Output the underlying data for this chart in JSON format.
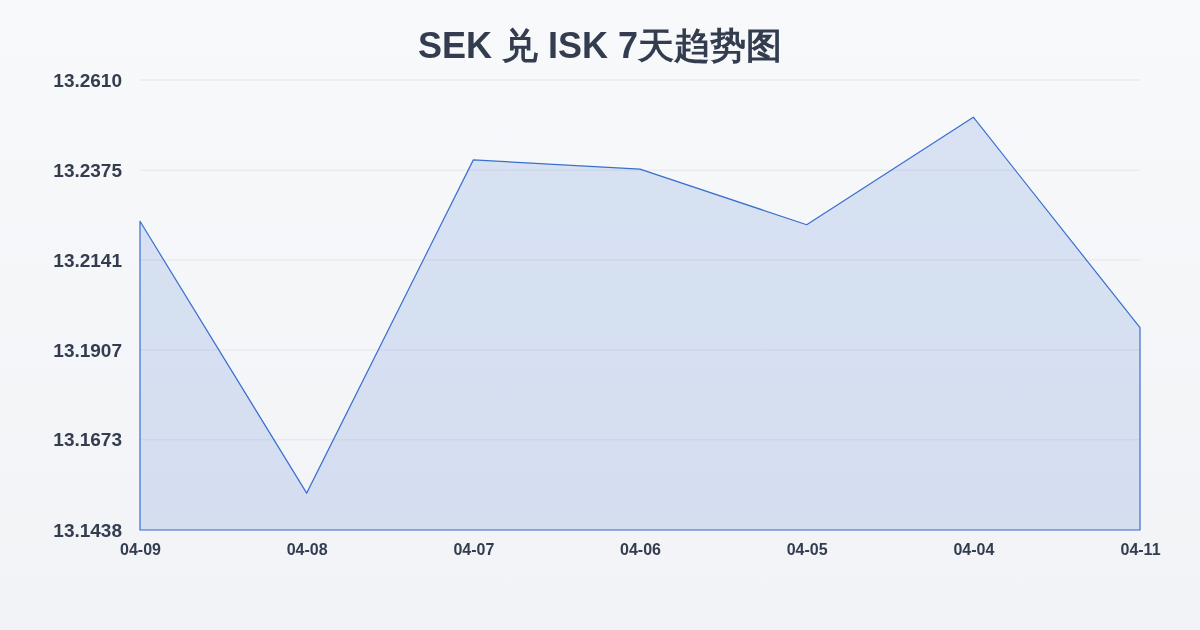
{
  "chart_data": {
    "type": "area",
    "title": "SEK 兑 ISK 7天趋势图",
    "categories": [
      "04-09",
      "04-08",
      "04-07",
      "04-06",
      "04-05",
      "04-04",
      "04-11"
    ],
    "series": [
      {
        "color": "#3a6fd0",
        "values": [
          13.2242,
          13.1534,
          13.2402,
          13.2378,
          13.2233,
          13.2513,
          13.1965
        ]
      }
    ],
    "ylim": [
      13.1438,
      13.261
    ],
    "yticks": [
      {
        "value": 13.1438,
        "label": "13.1438"
      },
      {
        "value": 13.1673,
        "label": "13.1673"
      },
      {
        "value": 13.1907,
        "label": "13.1907"
      },
      {
        "value": 13.2141,
        "label": "13.2141"
      },
      {
        "value": 13.2375,
        "label": "13.2375"
      },
      {
        "value": 13.261,
        "label": "13.2610"
      }
    ],
    "grid": "y"
  }
}
